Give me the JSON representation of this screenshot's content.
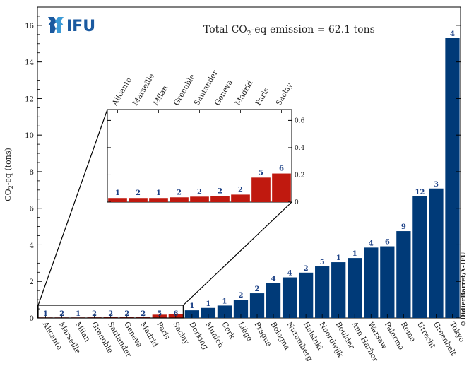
{
  "logo": {
    "text": "IFU",
    "color": "#1b5aa0"
  },
  "credit": "©DidierBarret/X-IFU",
  "annotation": {
    "prefix": "Total CO",
    "sub": "2",
    "suffix": "-eq emission = 62.1 tons"
  },
  "chart_data": {
    "type": "bar",
    "ylabel": {
      "prefix": "CO",
      "sub": "2",
      "suffix": "-eq (tons)"
    },
    "ylim": [
      0,
      17
    ],
    "yticks": [
      0,
      2,
      4,
      6,
      8,
      10,
      12,
      14,
      16
    ],
    "categories": [
      "Alicante",
      "Marseille",
      "Milan",
      "Grenoble",
      "Santander",
      "Geneva",
      "Madrid",
      "Paris",
      "Saclay",
      "Dorking",
      "Munich",
      "Cork",
      "Liège",
      "Prague",
      "Bologna",
      "Nuremberg",
      "Helsinki",
      "Noordwijk",
      "Boulder",
      "Ann Harbor",
      "Warsaw",
      "Palermo",
      "Rome",
      "Utrecht",
      "Greenbelt",
      "Tokyo"
    ],
    "values": [
      0.03,
      0.03,
      0.03,
      0.035,
      0.04,
      0.045,
      0.055,
      0.18,
      0.21,
      0.42,
      0.55,
      0.68,
      1.0,
      1.35,
      1.92,
      2.22,
      2.48,
      2.82,
      3.05,
      3.28,
      3.85,
      3.92,
      4.75,
      6.65,
      7.08,
      15.3
    ],
    "counts": [
      1,
      2,
      1,
      2,
      2,
      2,
      2,
      5,
      6,
      1,
      1,
      1,
      2,
      2,
      4,
      4,
      2,
      5,
      1,
      1,
      4,
      6,
      9,
      12,
      3,
      4
    ],
    "colors": {
      "small": "#c0190f",
      "large": "#003a78"
    },
    "inset": {
      "categories": [
        "Alicante",
        "Marseille",
        "Milan",
        "Grenoble",
        "Santander",
        "Geneva",
        "Madrid",
        "Paris",
        "Saclay"
      ],
      "ylim": [
        0,
        0.68
      ],
      "yticks": [
        "0",
        "0.2",
        "0.4",
        "0.6"
      ]
    }
  }
}
